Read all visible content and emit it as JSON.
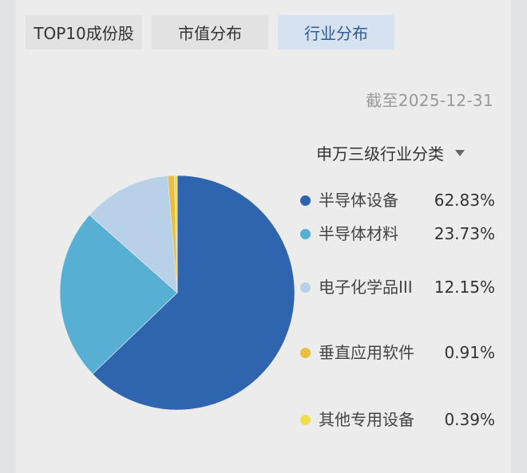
{
  "tabs": [
    {
      "label": "TOP10成份股",
      "active": false
    },
    {
      "label": "市值分布",
      "active": false
    },
    {
      "label": "行业分布",
      "active": true
    }
  ],
  "as_of": "截至2025-12-31",
  "classifier": {
    "label": "申万三级行业分类",
    "icon": "caret-down-icon"
  },
  "legend": [
    {
      "label": "半导体设备",
      "value": "62.83%",
      "color": "#2f64ae"
    },
    {
      "label": "半导体材料",
      "value": "23.73%",
      "color": "#57b0d3"
    },
    {
      "label": "电子化学品III",
      "value": "12.15%",
      "color": "#b8d0e8"
    },
    {
      "label": "垂直应用软件",
      "value": "0.91%",
      "color": "#e9bf3f"
    },
    {
      "label": "其他专用设备",
      "value": "0.39%",
      "color": "#f0de4e"
    }
  ],
  "chart_data": {
    "type": "pie",
    "title": "行业分布",
    "subtitle": "申万三级行业分类",
    "annotation": "截至2025-12-31",
    "categories": [
      "半导体设备",
      "半导体材料",
      "电子化学品III",
      "垂直应用软件",
      "其他专用设备"
    ],
    "values": [
      62.83,
      23.73,
      12.15,
      0.91,
      0.39
    ],
    "unit": "%",
    "colors": [
      "#2f64ae",
      "#57b0d3",
      "#b8d0e8",
      "#e9bf3f",
      "#f0de4e"
    ],
    "start_angle": "12 o'clock",
    "direction": "clockwise",
    "legend_position": "right"
  }
}
